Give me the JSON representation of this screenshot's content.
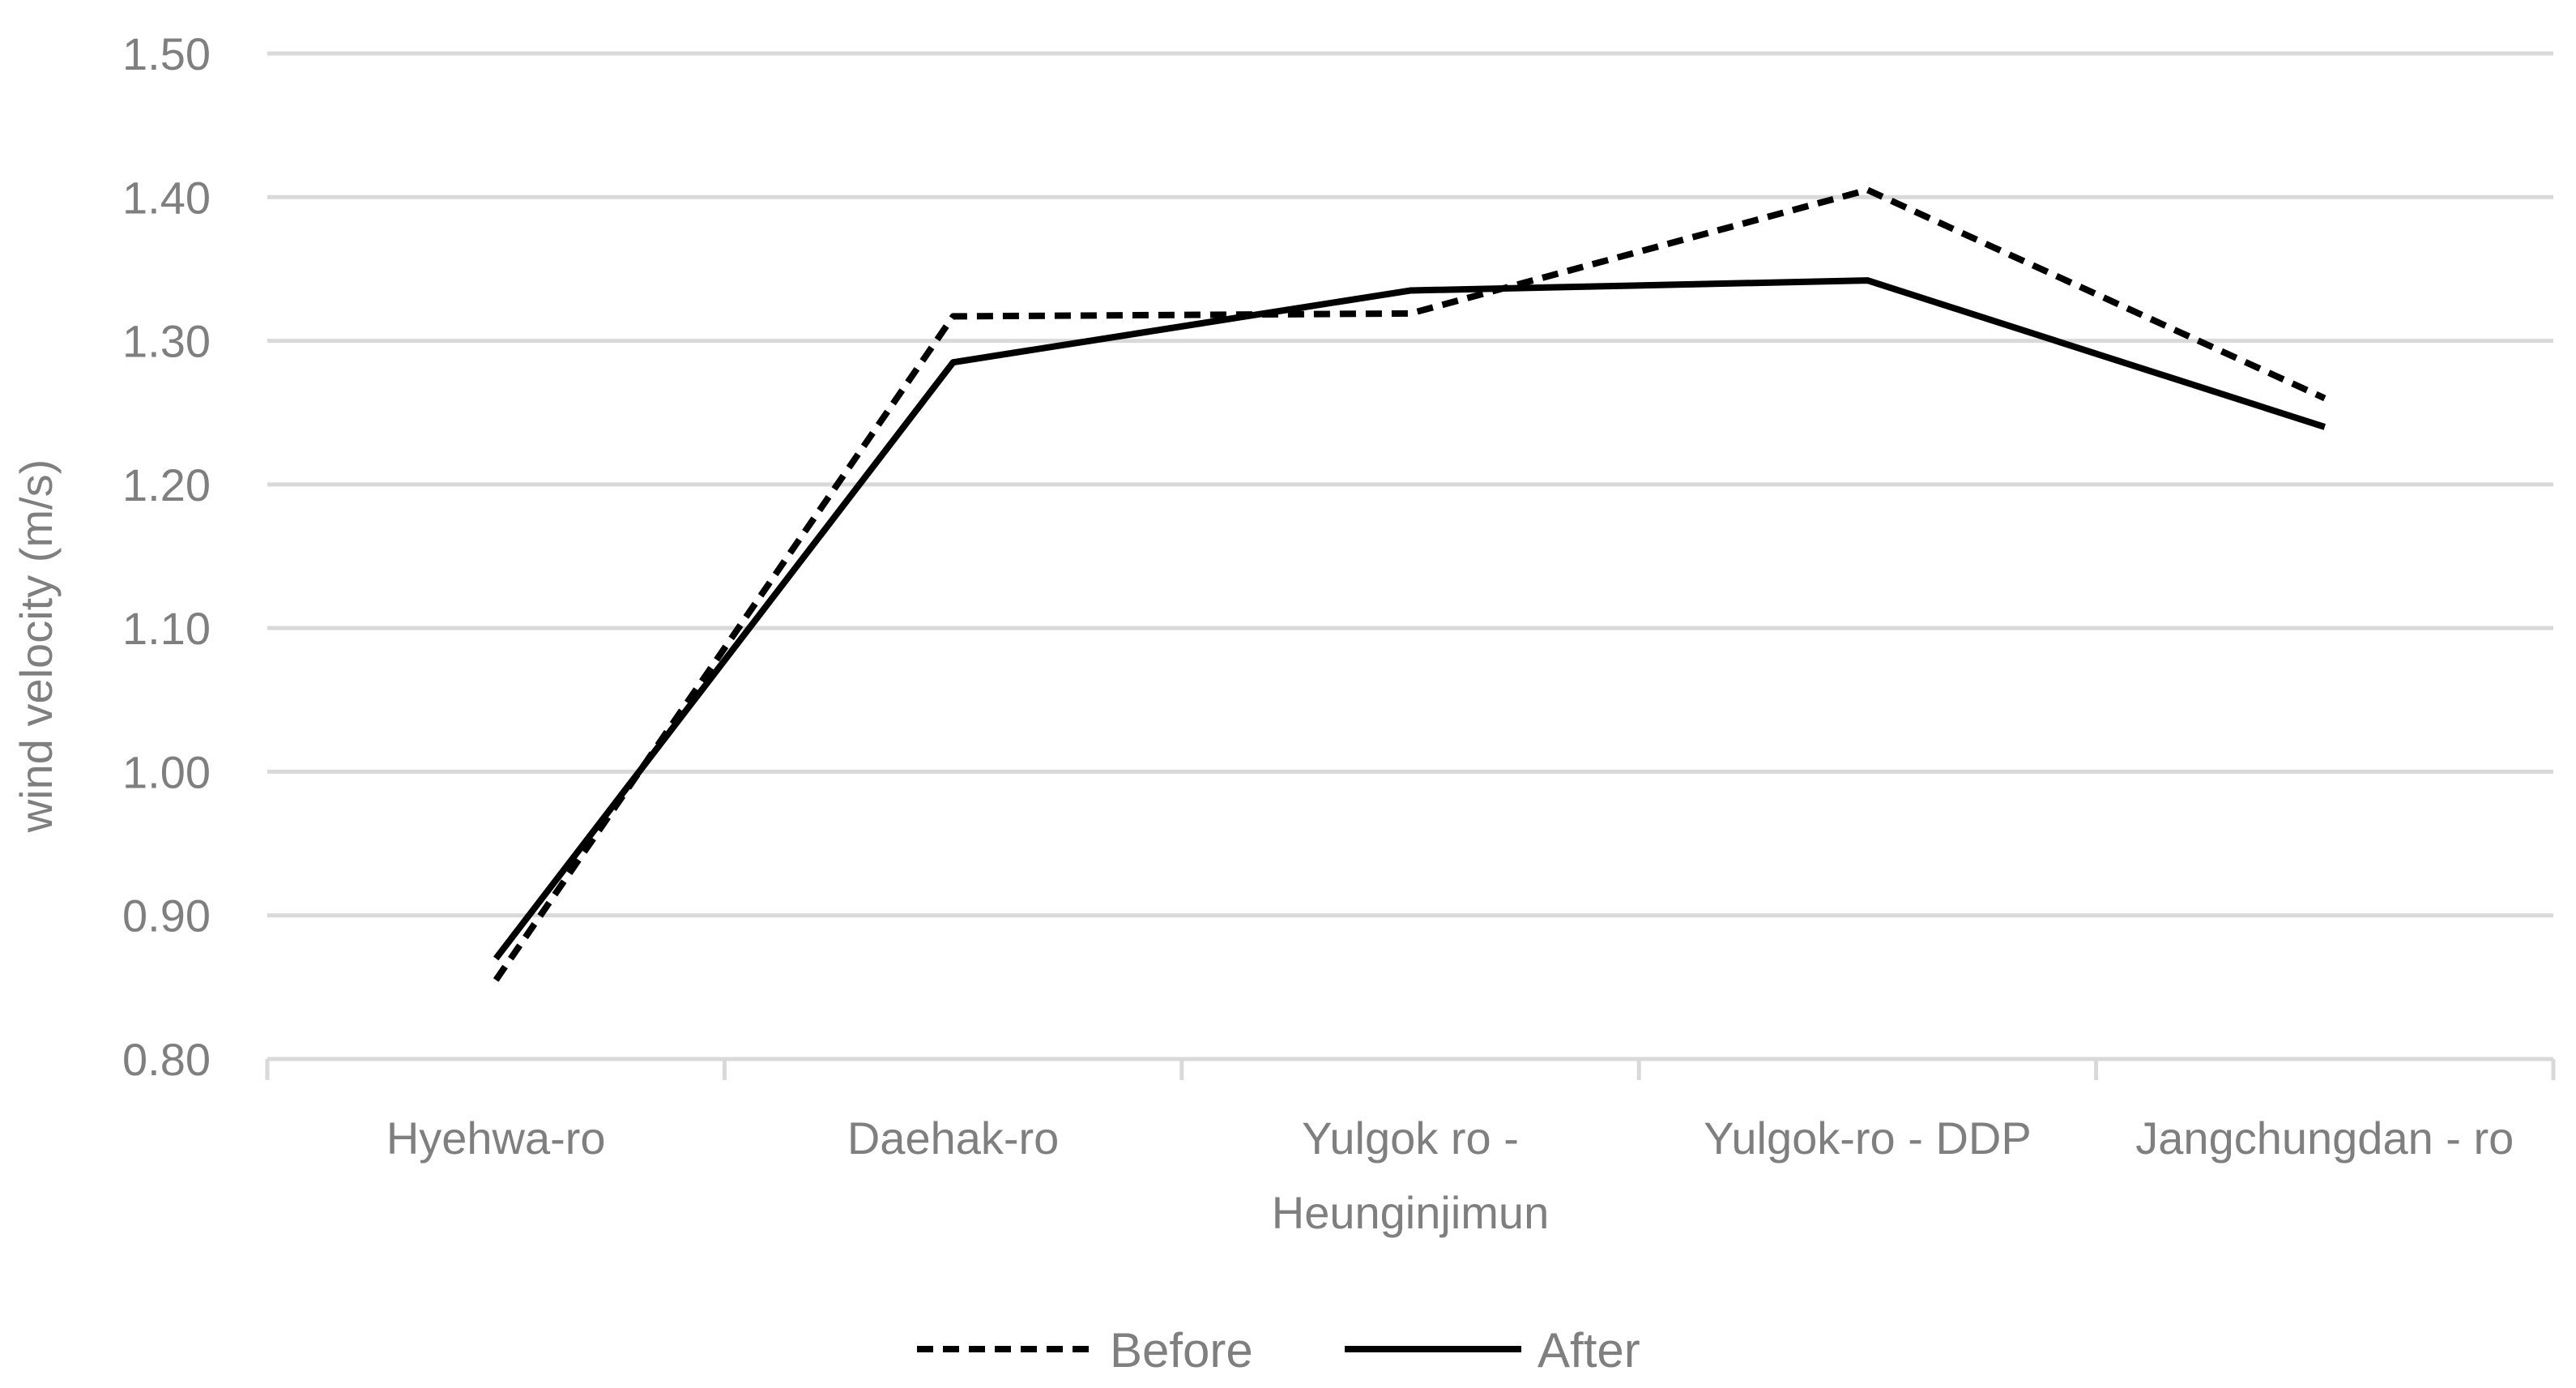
{
  "chart_data": {
    "type": "line",
    "categories": [
      "Hyehwa-ro",
      "Daehak-ro",
      "Yulgok ro - Heunginjimun",
      "Yulgok-ro - DDP",
      "Jangchungdan - ro"
    ],
    "category_lines": [
      [
        "Hyehwa-ro"
      ],
      [
        "Daehak-ro"
      ],
      [
        "Yulgok ro -",
        "Heunginjimun"
      ],
      [
        "Yulgok-ro - DDP"
      ],
      [
        "Jangchungdan - ro"
      ]
    ],
    "series": [
      {
        "name": "Before",
        "style": "dashed",
        "color": "#000000",
        "values": [
          0.855,
          1.317,
          1.319,
          1.405,
          1.26
        ]
      },
      {
        "name": "After",
        "style": "solid",
        "color": "#000000",
        "values": [
          0.87,
          1.285,
          1.335,
          1.342,
          1.24
        ]
      }
    ],
    "ylabel": "wind velocity (m/s)",
    "xlabel": "",
    "ylim": [
      0.8,
      1.5
    ],
    "yticks": [
      "0.80",
      "0.90",
      "1.00",
      "1.10",
      "1.20",
      "1.30",
      "1.40",
      "1.50"
    ],
    "grid": true,
    "legend_position": "bottom"
  }
}
